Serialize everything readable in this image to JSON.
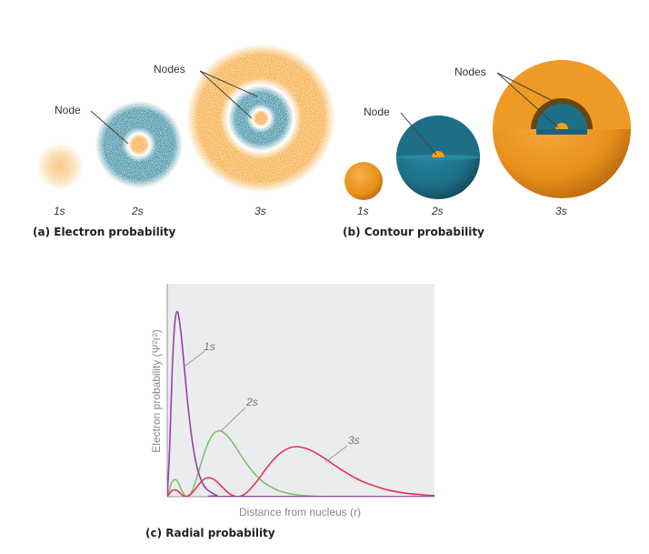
{
  "colors": {
    "orange": "#f39c1f",
    "teal": "#1e7a93",
    "curve_1s": "#9b3fa8",
    "curve_2s": "#7cc26a",
    "curve_3s": "#e8325a",
    "plot_bg": "#ebecee"
  },
  "panel_a": {
    "caption": "(a) Electron probability",
    "labels": [
      "1s",
      "2s",
      "3s"
    ],
    "node_label": "Node",
    "nodes_label": "Nodes"
  },
  "panel_b": {
    "caption": "(b) Contour probability",
    "labels": [
      "1s",
      "2s",
      "3s"
    ],
    "node_label": "Node",
    "nodes_label": "Nodes"
  },
  "panel_c": {
    "caption": "(c) Radial probability"
  },
  "chart_data": {
    "type": "line",
    "xlabel": "Distance from nucleus (r)",
    "ylabel": "Electron probability (Ψ²r²)",
    "xlim": [
      0,
      27
    ],
    "ylim": [
      0,
      1
    ],
    "grid": false,
    "series": [
      {
        "name": "1s",
        "x": [
          0,
          0.25,
          0.5,
          0.75,
          1,
          1.25,
          1.5,
          2,
          2.5,
          3,
          3.5,
          4,
          5,
          6,
          27
        ],
        "y": [
          0,
          0.24,
          0.59,
          0.81,
          0.87,
          0.82,
          0.72,
          0.47,
          0.27,
          0.14,
          0.07,
          0.035,
          0.007,
          0.001,
          0
        ]
      },
      {
        "name": "2s",
        "x": [
          0,
          0.5,
          1,
          1.5,
          2,
          2.5,
          3,
          3.5,
          4,
          4.5,
          5,
          5.5,
          6,
          6.5,
          7,
          7.5,
          8,
          8.5,
          9,
          9.5,
          10,
          11,
          12,
          13,
          14,
          15,
          16,
          17,
          27
        ],
        "y": [
          0,
          0.07,
          0.075,
          0.025,
          0,
          0.026,
          0.091,
          0.169,
          0.237,
          0.285,
          0.307,
          0.307,
          0.289,
          0.261,
          0.226,
          0.191,
          0.156,
          0.126,
          0.099,
          0.077,
          0.059,
          0.033,
          0.018,
          0.009,
          0.005,
          0.002,
          0.001,
          0,
          0
        ]
      },
      {
        "name": "3s",
        "x": [
          0,
          0.5,
          1,
          1.5,
          1.9,
          2.5,
          3,
          3.5,
          4,
          4.5,
          5,
          5.5,
          6,
          6.5,
          7.1,
          7.5,
          8,
          9,
          10,
          11,
          12,
          13,
          14,
          15,
          16,
          17,
          18,
          19,
          20,
          22,
          24,
          26,
          27
        ],
        "y": [
          0,
          0.029,
          0.029,
          0.008,
          0,
          0.017,
          0.046,
          0.074,
          0.088,
          0.086,
          0.071,
          0.048,
          0.025,
          0.008,
          0,
          0.004,
          0.018,
          0.069,
          0.132,
          0.187,
          0.222,
          0.235,
          0.227,
          0.206,
          0.177,
          0.145,
          0.115,
          0.088,
          0.066,
          0.035,
          0.017,
          0.008,
          0.005
        ]
      }
    ]
  }
}
